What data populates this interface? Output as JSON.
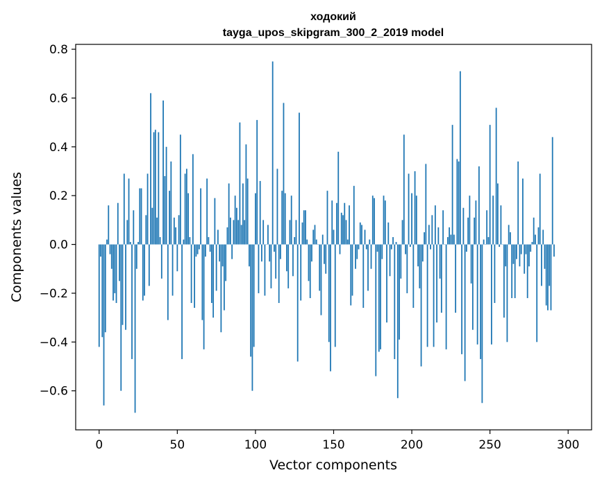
{
  "chart_data": {
    "type": "bar",
    "title": "ходокий",
    "subtitle": "tayga_upos_skipgram_300_2_2019 model",
    "xlabel": "Vector components",
    "ylabel": "Components values",
    "xlim": [
      -15,
      315
    ],
    "ylim": [
      -0.76,
      0.82
    ],
    "xticks": [
      0,
      50,
      100,
      150,
      200,
      250,
      300
    ],
    "yticks": [
      -0.6,
      -0.4,
      -0.2,
      0.0,
      0.2,
      0.4,
      0.6,
      0.8
    ],
    "xtick_labels": [
      "0",
      "50",
      "100",
      "150",
      "200",
      "250",
      "300"
    ],
    "ytick_labels": [
      "−0.6",
      "−0.4",
      "−0.2",
      "0.0",
      "0.2",
      "0.4",
      "0.6",
      "0.8"
    ],
    "grid": false,
    "bar_color": "#1f77b4",
    "values": [
      -0.42,
      -0.05,
      -0.38,
      -0.66,
      -0.36,
      0.02,
      0.16,
      -0.04,
      -0.1,
      -0.23,
      -0.2,
      -0.24,
      0.17,
      -0.15,
      -0.6,
      -0.33,
      0.29,
      -0.35,
      0.1,
      0.27,
      0.01,
      -0.47,
      0.14,
      -0.69,
      -0.1,
      0.01,
      0.23,
      0.23,
      -0.23,
      -0.21,
      0.12,
      0.29,
      -0.17,
      0.62,
      0.15,
      0.46,
      0.47,
      0.11,
      0.46,
      0.03,
      -0.14,
      0.59,
      0.28,
      0.4,
      -0.31,
      0.22,
      0.34,
      -0.21,
      0.11,
      0.07,
      -0.11,
      0.12,
      0.45,
      -0.47,
      0.02,
      0.29,
      0.31,
      0.21,
      0.03,
      -0.24,
      0.37,
      -0.26,
      -0.05,
      -0.04,
      -0.02,
      0.23,
      -0.31,
      -0.43,
      -0.05,
      0.27,
      0.03,
      -0.03,
      -0.24,
      -0.3,
      0.19,
      -0.19,
      0.06,
      -0.07,
      -0.36,
      -0.09,
      -0.27,
      -0.15,
      0.07,
      0.25,
      0.11,
      -0.06,
      0.1,
      0.2,
      0.15,
      0.1,
      0.5,
      0.08,
      0.25,
      0.1,
      0.41,
      0.27,
      -0.09,
      -0.46,
      -0.6,
      -0.42,
      0.21,
      0.51,
      -0.2,
      0.26,
      -0.07,
      0.1,
      -0.21,
      0.0,
      0.08,
      -0.07,
      -0.18,
      0.75,
      -0.03,
      -0.14,
      0.31,
      -0.24,
      -0.06,
      0.22,
      0.58,
      0.21,
      -0.11,
      -0.18,
      0.1,
      0.2,
      -0.13,
      0.03,
      0.1,
      -0.48,
      0.54,
      -0.23,
      0.09,
      0.14,
      0.14,
      0.02,
      -0.15,
      -0.22,
      -0.07,
      0.06,
      0.08,
      0.02,
      0.0,
      -0.19,
      -0.29,
      0.04,
      -0.08,
      -0.12,
      0.22,
      -0.4,
      -0.52,
      0.18,
      0.06,
      -0.42,
      0.17,
      0.38,
      -0.04,
      0.13,
      0.12,
      0.17,
      0.1,
      0.02,
      0.16,
      -0.25,
      -0.21,
      0.24,
      -0.1,
      -0.06,
      -0.02,
      0.09,
      0.08,
      -0.26,
      0.06,
      -0.02,
      -0.19,
      0.02,
      -0.1,
      0.2,
      0.19,
      -0.54,
      -0.03,
      -0.44,
      -0.43,
      -0.06,
      0.2,
      0.18,
      -0.32,
      0.09,
      -0.13,
      -0.02,
      0.03,
      -0.47,
      0.01,
      -0.63,
      -0.39,
      -0.14,
      0.1,
      0.45,
      -0.04,
      -0.2,
      0.29,
      -0.01,
      0.21,
      -0.26,
      0.3,
      0.2,
      -0.09,
      -0.18,
      -0.5,
      -0.07,
      0.05,
      0.33,
      -0.42,
      0.08,
      -0.02,
      0.12,
      -0.42,
      0.16,
      -0.32,
      0.07,
      -0.14,
      -0.28,
      0.14,
      0.0,
      -0.43,
      0.03,
      0.07,
      0.04,
      0.49,
      0.04,
      -0.28,
      0.35,
      0.34,
      0.71,
      -0.45,
      0.15,
      -0.56,
      -0.03,
      0.11,
      0.2,
      -0.16,
      -0.35,
      0.11,
      0.18,
      -0.41,
      0.32,
      -0.47,
      -0.65,
      0.02,
      0.0,
      0.14,
      0.03,
      0.49,
      -0.41,
      0.2,
      -0.24,
      0.56,
      0.25,
      -0.01,
      0.16,
      0.0,
      -0.3,
      -0.09,
      -0.4,
      0.08,
      0.05,
      -0.22,
      -0.08,
      -0.22,
      -0.06,
      0.34,
      -0.09,
      -0.04,
      0.27,
      -0.12,
      -0.04,
      -0.22,
      -0.09,
      -0.03,
      0.01,
      0.11,
      0.04,
      -0.4,
      0.07,
      0.29,
      -0.17,
      0.06,
      -0.1,
      -0.25,
      -0.27,
      -0.17,
      -0.27,
      0.44,
      -0.05
    ]
  }
}
